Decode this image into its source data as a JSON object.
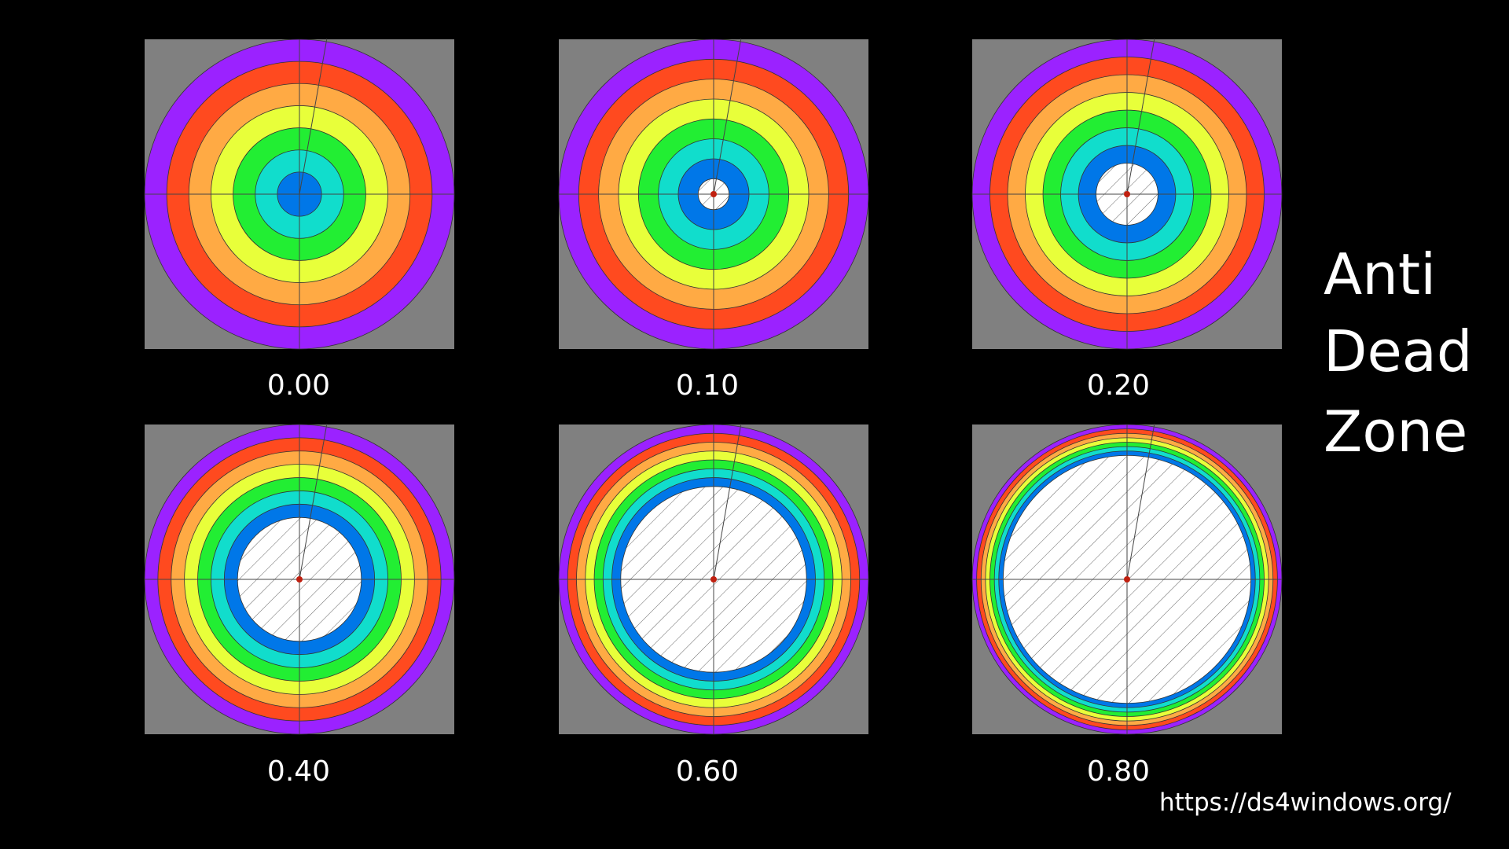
{
  "panels": [
    {
      "label": "0.00"
    },
    {
      "label": "0.10"
    },
    {
      "label": "0.20"
    },
    {
      "label": "0.40"
    },
    {
      "label": "0.60"
    },
    {
      "label": "0.80"
    }
  ],
  "side_title": {
    "line1": "Anti",
    "line2": "Dead",
    "line3": "Zone"
  },
  "url": "https://ds4windows.org/"
}
